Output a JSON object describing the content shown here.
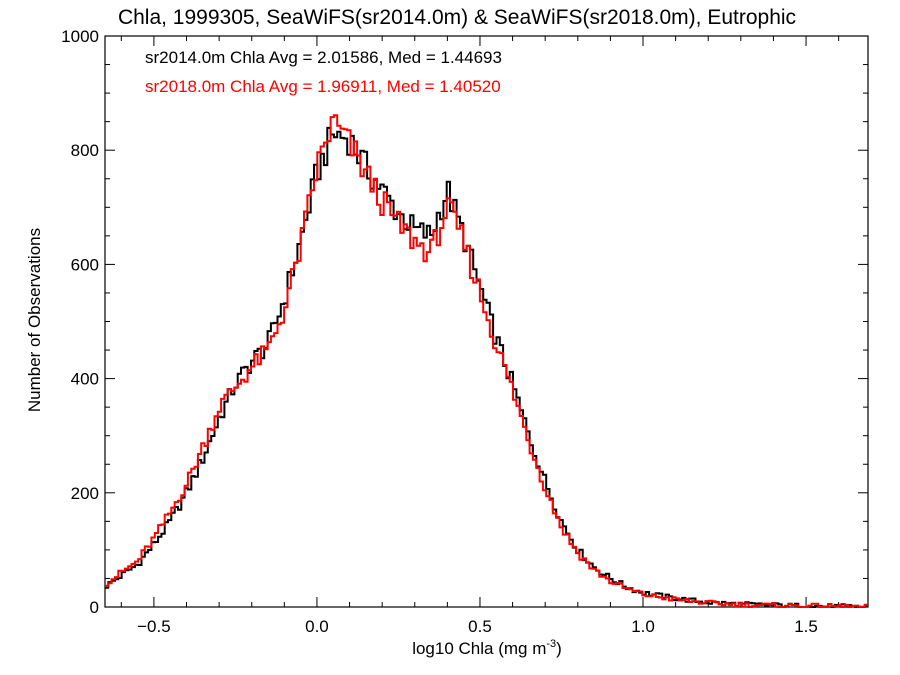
{
  "chart_data": {
    "type": "line",
    "step": true,
    "title": "Chla, 1999305, SeaWiFS(sr2014.0m) & SeaWiFS(sr2018.0m), Eutrophic",
    "xlabel_main": "log10 Chla (mg m",
    "xlabel_sup": "-3",
    "xlabel_close": ")",
    "ylabel": "Number of Observations",
    "xlim": [
      -0.65,
      1.69
    ],
    "ylim": [
      0,
      1000
    ],
    "x_ticks": [
      -0.5,
      0.0,
      0.5,
      1.0,
      1.5
    ],
    "x_tick_labels": [
      "−0.5",
      "0.0",
      "0.5",
      "1.0",
      "1.5"
    ],
    "y_ticks": [
      0,
      200,
      400,
      600,
      800,
      1000
    ],
    "y_tick_labels": [
      "0",
      "200",
      "400",
      "600",
      "800",
      "1000"
    ],
    "annotations": [
      {
        "text": "sr2014.0m Chla Avg = 2.01586, Med = 1.44693",
        "color": "#000000"
      },
      {
        "text": "sr2018.0m Chla Avg = 1.96911, Med = 1.40520",
        "color": "#ff0000"
      }
    ],
    "series": [
      {
        "color": "#000000",
        "points": [
          [
            -0.65,
            35
          ],
          [
            -0.6,
            55
          ],
          [
            -0.55,
            75
          ],
          [
            -0.5,
            110
          ],
          [
            -0.45,
            150
          ],
          [
            -0.4,
            200
          ],
          [
            -0.35,
            260
          ],
          [
            -0.3,
            330
          ],
          [
            -0.25,
            390
          ],
          [
            -0.2,
            430
          ],
          [
            -0.15,
            460
          ],
          [
            -0.1,
            540
          ],
          [
            -0.05,
            640
          ],
          [
            0.0,
            760
          ],
          [
            0.05,
            830
          ],
          [
            0.1,
            820
          ],
          [
            0.15,
            770
          ],
          [
            0.2,
            730
          ],
          [
            0.25,
            690
          ],
          [
            0.3,
            660
          ],
          [
            0.35,
            650
          ],
          [
            0.4,
            730
          ],
          [
            0.45,
            650
          ],
          [
            0.5,
            560
          ],
          [
            0.55,
            470
          ],
          [
            0.6,
            390
          ],
          [
            0.65,
            300
          ],
          [
            0.7,
            220
          ],
          [
            0.75,
            150
          ],
          [
            0.8,
            100
          ],
          [
            0.85,
            70
          ],
          [
            0.9,
            50
          ],
          [
            0.95,
            35
          ],
          [
            1.0,
            25
          ],
          [
            1.1,
            15
          ],
          [
            1.2,
            8
          ],
          [
            1.3,
            5
          ],
          [
            1.4,
            3
          ],
          [
            1.5,
            2
          ],
          [
            1.6,
            1
          ],
          [
            1.69,
            0
          ]
        ]
      },
      {
        "color": "#ff0000",
        "points": [
          [
            -0.65,
            40
          ],
          [
            -0.6,
            60
          ],
          [
            -0.55,
            80
          ],
          [
            -0.5,
            120
          ],
          [
            -0.45,
            165
          ],
          [
            -0.4,
            215
          ],
          [
            -0.35,
            280
          ],
          [
            -0.3,
            350
          ],
          [
            -0.25,
            385
          ],
          [
            -0.2,
            420
          ],
          [
            -0.15,
            450
          ],
          [
            -0.1,
            520
          ],
          [
            -0.05,
            630
          ],
          [
            0.0,
            770
          ],
          [
            0.05,
            850
          ],
          [
            0.1,
            810
          ],
          [
            0.15,
            760
          ],
          [
            0.2,
            710
          ],
          [
            0.25,
            670
          ],
          [
            0.3,
            640
          ],
          [
            0.35,
            620
          ],
          [
            0.4,
            700
          ],
          [
            0.45,
            640
          ],
          [
            0.5,
            550
          ],
          [
            0.55,
            460
          ],
          [
            0.6,
            380
          ],
          [
            0.65,
            290
          ],
          [
            0.7,
            210
          ],
          [
            0.75,
            140
          ],
          [
            0.8,
            95
          ],
          [
            0.85,
            65
          ],
          [
            0.9,
            45
          ],
          [
            0.95,
            32
          ],
          [
            1.0,
            22
          ],
          [
            1.1,
            13
          ],
          [
            1.2,
            7
          ],
          [
            1.3,
            4
          ],
          [
            1.4,
            3
          ],
          [
            1.5,
            2
          ],
          [
            1.6,
            1
          ],
          [
            1.69,
            0
          ]
        ]
      }
    ]
  }
}
